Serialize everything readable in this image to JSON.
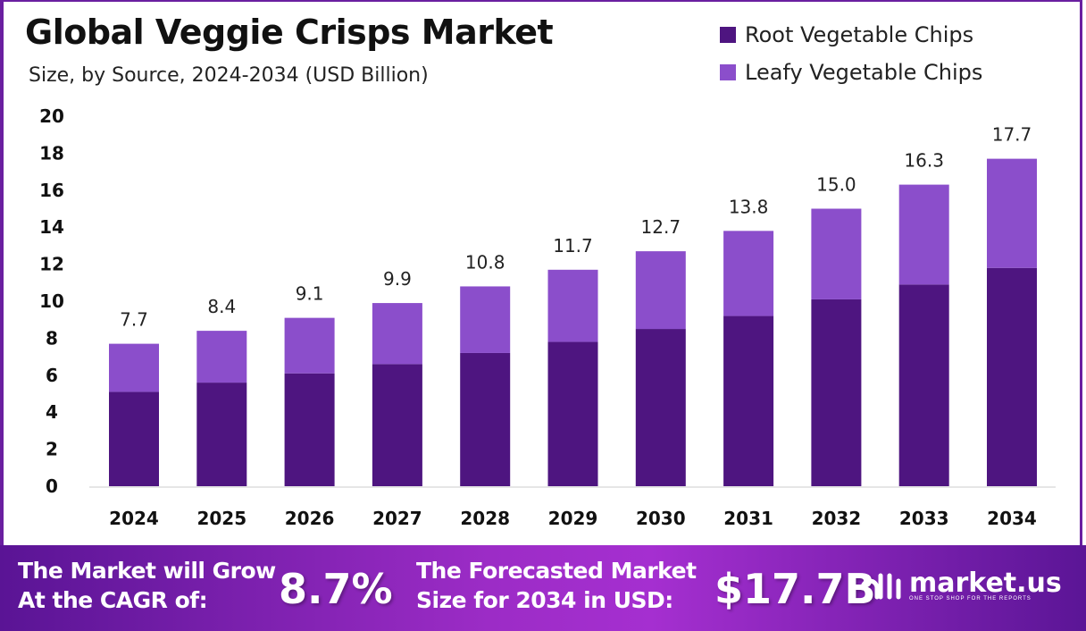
{
  "title": "Global Veggie Crisps Market",
  "subtitle": "Size, by Source, 2024-2034 (USD Billion)",
  "colors": {
    "root": "#4e1580",
    "leafy": "#8b4ecb",
    "accent": "#6a1fa0"
  },
  "chart_data": {
    "type": "bar",
    "stacked": true,
    "categories": [
      "2024",
      "2025",
      "2026",
      "2027",
      "2028",
      "2029",
      "2030",
      "2031",
      "2032",
      "2033",
      "2034"
    ],
    "series": [
      {
        "name": "Root Vegetable Chips",
        "values": [
          5.1,
          5.6,
          6.1,
          6.6,
          7.2,
          7.8,
          8.5,
          9.2,
          10.1,
          10.9,
          11.8
        ]
      },
      {
        "name": "Leafy Vegetable Chips",
        "values": [
          2.6,
          2.8,
          3.0,
          3.3,
          3.6,
          3.9,
          4.2,
          4.6,
          4.9,
          5.4,
          5.9
        ]
      }
    ],
    "totals": [
      "7.7",
      "8.4",
      "9.1",
      "9.9",
      "10.8",
      "11.7",
      "12.7",
      "13.8",
      "15.0",
      "16.3",
      "17.7"
    ],
    "ylim": [
      0,
      20
    ],
    "yticks": [
      "0",
      "2",
      "4",
      "6",
      "8",
      "10",
      "12",
      "14",
      "16",
      "18",
      "20"
    ],
    "grid": false,
    "legend": "top-right"
  },
  "footer": {
    "cagr_label_line1": "The Market will Grow",
    "cagr_label_line2": "At the CAGR of:",
    "cagr_value": "8.7%",
    "forecast_label_line1": "The Forecasted Market",
    "forecast_label_line2": "Size for 2034 in USD:",
    "forecast_value": "$17.7B",
    "brand": "market.us",
    "brand_tagline": "ONE STOP SHOP FOR THE REPORTS"
  }
}
